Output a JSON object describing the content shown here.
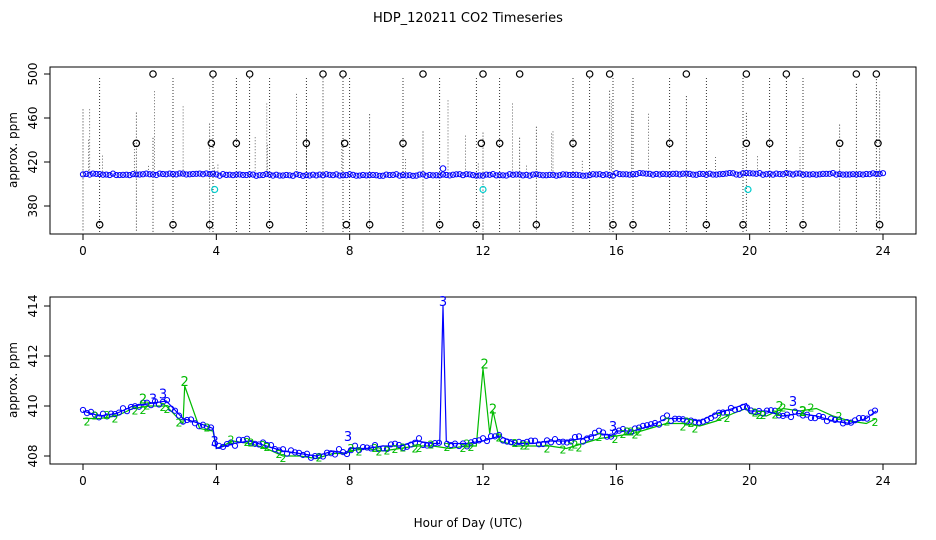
{
  "chart_data": [
    {
      "type": "scatter",
      "panel": "top",
      "title": "HDP_120211  CO2 Timeseries",
      "ylabel": "approx. ppm",
      "xlim": [
        0,
        24
      ],
      "ylim": [
        360,
        500
      ],
      "xticks": [
        0,
        4,
        8,
        12,
        16,
        20,
        24
      ],
      "yticks": [
        380,
        420,
        460,
        500
      ],
      "ytick_labels": [
        "380",
        "420",
        "460",
        "500"
      ],
      "baseline": {
        "name": "CO2",
        "color": "#0000ff",
        "level_start": 408.8,
        "level_mid": 408.2,
        "level_end": 409.2
      },
      "high_outliers_500": [
        2.1,
        3.9,
        5.0,
        7.2,
        7.8,
        10.2,
        12.0,
        13.1,
        15.2,
        15.8,
        18.1,
        19.9,
        21.1,
        23.2,
        23.8
      ],
      "high_outliers_437": [
        1.6,
        3.85,
        4.6,
        6.7,
        7.85,
        9.6,
        11.95,
        12.5,
        14.7,
        17.6,
        19.9,
        20.6,
        22.7,
        23.85
      ],
      "low_outliers_385": [
        0.5,
        2.7,
        3.8,
        5.6,
        7.9,
        8.6,
        10.7,
        11.8,
        13.6,
        15.9,
        16.5,
        18.7,
        19.8,
        21.6,
        23.9
      ],
      "cyan_points": [
        [
          3.95,
          395
        ],
        [
          12.0,
          395
        ],
        [
          19.95,
          395
        ]
      ],
      "dotted_spikes": [
        0.0,
        0.5,
        1.6,
        2.1,
        2.7,
        3.8,
        3.9,
        4.6,
        5.0,
        5.6,
        6.7,
        7.2,
        7.8,
        8.0,
        8.6,
        9.6,
        10.2,
        10.7,
        11.8,
        12.0,
        12.5,
        13.1,
        13.6,
        14.7,
        15.2,
        15.8,
        15.9,
        16.5,
        17.6,
        18.1,
        18.7,
        19.8,
        19.9,
        20.6,
        21.1,
        21.6,
        22.7,
        23.2,
        23.8,
        23.9
      ]
    },
    {
      "type": "line",
      "panel": "bottom",
      "xlabel": "Hour of Day (UTC)",
      "ylabel": "approx. ppm",
      "xlim": [
        0,
        24
      ],
      "ylim": [
        408,
        414
      ],
      "xticks": [
        0,
        4,
        8,
        12,
        16,
        20,
        24
      ],
      "yticks": [
        408,
        410,
        412,
        414
      ],
      "series": [
        {
          "name": "3",
          "color": "#0000ff",
          "marker": "circle",
          "x": [
            0,
            0.5,
            1,
            1.5,
            2,
            2.5,
            3,
            3.5,
            3.9,
            4,
            4.5,
            5,
            5.5,
            6,
            6.5,
            7,
            7.5,
            7.9,
            8,
            8.5,
            9,
            9.5,
            10,
            10.5,
            10.7,
            10.8,
            10.9,
            11,
            11.5,
            12,
            12.5,
            13,
            13.5,
            14,
            14.5,
            15,
            15.5,
            15.9,
            16,
            16.5,
            17,
            17.5,
            18,
            18.5,
            19,
            19.5,
            19.9,
            20,
            20.5,
            21,
            21.5,
            22,
            22.5,
            23,
            23.5,
            23.8
          ],
          "values": [
            409.8,
            409.6,
            409.7,
            410.0,
            410.1,
            410.2,
            409.5,
            409.3,
            409.1,
            408.3,
            408.5,
            408.6,
            408.4,
            408.2,
            408.1,
            408.0,
            408.2,
            408.1,
            408.3,
            408.3,
            408.4,
            408.4,
            408.6,
            408.5,
            408.5,
            414.0,
            408.6,
            408.5,
            408.5,
            408.6,
            408.8,
            408.5,
            408.5,
            408.6,
            408.6,
            408.7,
            408.9,
            408.8,
            409.0,
            409.0,
            409.2,
            409.5,
            409.5,
            409.4,
            409.7,
            409.9,
            410.1,
            409.8,
            409.8,
            409.6,
            409.7,
            409.6,
            409.4,
            409.3,
            409.5,
            409.8
          ]
        },
        {
          "name": "2",
          "color": "#00bb00",
          "marker": "2",
          "x": [
            0,
            0.5,
            1,
            1.5,
            2,
            2.5,
            3,
            3.05,
            3.5,
            3.9,
            4,
            4.5,
            5,
            5.5,
            6,
            6.5,
            7,
            7.5,
            7.9,
            8,
            8.5,
            9,
            9.5,
            10,
            10.5,
            11,
            11.5,
            11.8,
            12,
            12.2,
            12.3,
            12.5,
            13,
            13.5,
            14,
            14.5,
            15,
            15.5,
            16,
            16.5,
            17,
            17.5,
            18,
            18.5,
            19,
            19.5,
            19.9,
            20,
            20.5,
            21,
            21.5,
            22,
            22.5,
            23,
            23.5,
            23.8
          ],
          "values": [
            409.5,
            409.5,
            409.6,
            409.9,
            410.0,
            410.0,
            409.3,
            410.8,
            409.1,
            409.0,
            408.3,
            408.6,
            408.5,
            408.3,
            408.0,
            408.0,
            407.9,
            408.1,
            408.1,
            408.2,
            408.3,
            408.2,
            408.3,
            408.4,
            408.4,
            408.3,
            408.4,
            408.4,
            411.5,
            408.9,
            409.8,
            408.6,
            408.4,
            408.4,
            408.4,
            408.3,
            408.5,
            408.7,
            408.8,
            408.9,
            409.1,
            409.3,
            409.3,
            409.2,
            409.4,
            409.7,
            409.9,
            409.7,
            409.6,
            409.9,
            409.8,
            409.9,
            409.6,
            409.4,
            409.3,
            409.5
          ]
        }
      ],
      "point_labels": [
        {
          "text": "3",
          "x": 10.8,
          "y": 414.0,
          "color": "#0000ff"
        },
        {
          "text": "2",
          "x": 12.05,
          "y": 411.5,
          "color": "#00bb00"
        },
        {
          "text": "2",
          "x": 3.05,
          "y": 410.8,
          "color": "#00bb00"
        },
        {
          "text": "3",
          "x": 2.4,
          "y": 410.3,
          "color": "#0000ff"
        },
        {
          "text": "2",
          "x": 1.8,
          "y": 410.1,
          "color": "#00bb00"
        },
        {
          "text": "3",
          "x": 2.1,
          "y": 410.1,
          "color": "#0000ff"
        },
        {
          "text": "2",
          "x": 12.3,
          "y": 409.7,
          "color": "#00bb00"
        },
        {
          "text": "3",
          "x": 21.3,
          "y": 410.0,
          "color": "#0000ff"
        },
        {
          "text": "2",
          "x": 20.9,
          "y": 409.8,
          "color": "#00bb00"
        },
        {
          "text": "2",
          "x": 21.6,
          "y": 409.6,
          "color": "#00bb00"
        },
        {
          "text": "3",
          "x": 7.95,
          "y": 408.6,
          "color": "#0000ff"
        },
        {
          "text": "3",
          "x": 3.95,
          "y": 408.4,
          "color": "#0000ff"
        },
        {
          "text": "3",
          "x": 15.9,
          "y": 409.0,
          "color": "#0000ff"
        }
      ]
    }
  ]
}
